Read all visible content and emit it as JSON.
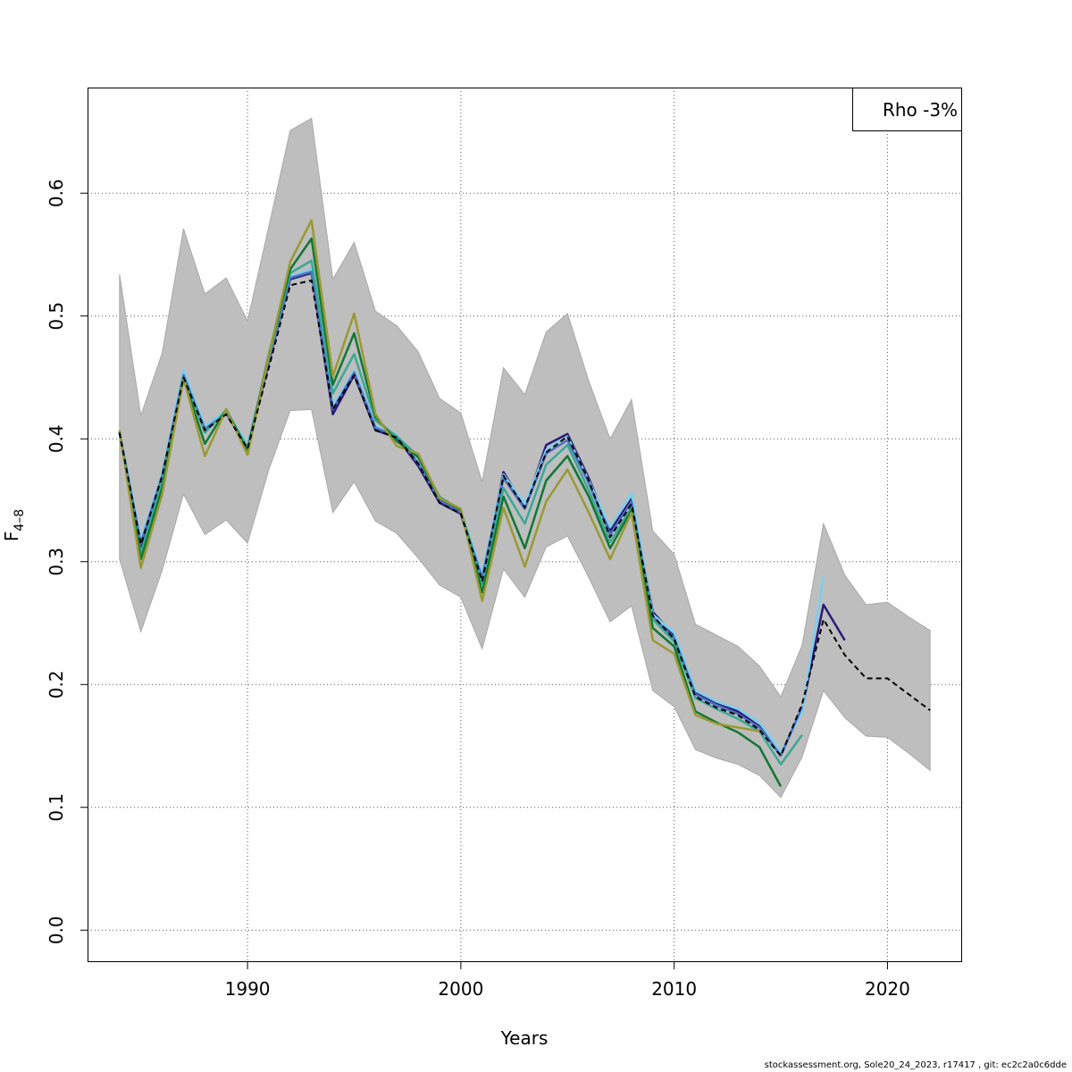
{
  "chart_data": {
    "type": "line",
    "title": "",
    "xlabel": "Years",
    "ylabel_main": "F",
    "ylabel_sub": "4–8",
    "xlim": [
      1982.5,
      2023.5
    ],
    "ylim": [
      -0.026,
      0.686
    ],
    "xticks": [
      1990,
      2000,
      2010,
      2020
    ],
    "yticks": [
      0.0,
      0.1,
      0.2,
      0.3,
      0.4,
      0.5,
      0.6
    ],
    "ytick_labels": [
      "0.0",
      "0.1",
      "0.2",
      "0.3",
      "0.4",
      "0.5",
      "0.6"
    ],
    "grid": true,
    "legend": {
      "position": "top-right",
      "text": "Rho -3%"
    },
    "colors": {
      "band": "#bebebe",
      "band_edge": "#a8a8a8",
      "black": "#000000",
      "navy": "#2a1a7a",
      "lightblue": "#7ad0f0",
      "steelblue": "#4a70c0",
      "teal": "#3aa896",
      "green": "#117733",
      "olive": "#999933"
    },
    "band": {
      "x": [
        1984,
        1985,
        1986,
        1987,
        1988,
        1989,
        1990,
        1991,
        1992,
        1993,
        1994,
        1995,
        1996,
        1997,
        1998,
        1999,
        2000,
        2001,
        2002,
        2003,
        2004,
        2005,
        2006,
        2007,
        2008,
        2009,
        2010,
        2011,
        2012,
        2013,
        2014,
        2015,
        2016,
        2017,
        2018,
        2019,
        2020,
        2021,
        2022
      ],
      "upper": [
        0.534,
        0.419,
        0.47,
        0.571,
        0.518,
        0.531,
        0.496,
        0.573,
        0.651,
        0.661,
        0.53,
        0.56,
        0.504,
        0.492,
        0.471,
        0.433,
        0.421,
        0.365,
        0.458,
        0.436,
        0.487,
        0.502,
        0.447,
        0.4,
        0.432,
        0.325,
        0.306,
        0.249,
        0.24,
        0.231,
        0.215,
        0.19,
        0.232,
        0.331,
        0.289,
        0.265,
        0.267,
        0.255,
        0.244
      ],
      "lower": [
        0.302,
        0.243,
        0.293,
        0.355,
        0.322,
        0.334,
        0.315,
        0.375,
        0.423,
        0.424,
        0.34,
        0.365,
        0.333,
        0.323,
        0.303,
        0.281,
        0.271,
        0.229,
        0.294,
        0.271,
        0.312,
        0.321,
        0.287,
        0.251,
        0.264,
        0.195,
        0.182,
        0.147,
        0.14,
        0.135,
        0.126,
        0.108,
        0.141,
        0.195,
        0.173,
        0.158,
        0.157,
        0.144,
        0.13
      ]
    },
    "series": [
      {
        "color_key": "navy",
        "dashed": false,
        "x": [
          1984,
          1985,
          1986,
          1987,
          1988,
          1989,
          1990,
          1991,
          1992,
          1993,
          1994,
          1995,
          1996,
          1997,
          1998,
          1999,
          2000,
          2001,
          2002,
          2003,
          2004,
          2005,
          2006,
          2007,
          2008,
          2009,
          2010,
          2011,
          2012,
          2013,
          2014,
          2015,
          2016,
          2017,
          2018
        ],
        "y": [
          0.405,
          0.312,
          0.37,
          0.451,
          0.408,
          0.421,
          0.392,
          0.462,
          0.53,
          0.535,
          0.42,
          0.452,
          0.407,
          0.401,
          0.378,
          0.348,
          0.339,
          0.285,
          0.373,
          0.344,
          0.395,
          0.404,
          0.368,
          0.325,
          0.351,
          0.259,
          0.24,
          0.193,
          0.185,
          0.178,
          0.166,
          0.143,
          0.18,
          0.265,
          0.236
        ]
      },
      {
        "color_key": "lightblue",
        "dashed": false,
        "x": [
          1984,
          1985,
          1986,
          1987,
          1988,
          1989,
          1990,
          1991,
          1992,
          1993,
          1994,
          1995,
          1996,
          1997,
          1998,
          1999,
          2000,
          2001,
          2002,
          2003,
          2004,
          2005,
          2006,
          2007,
          2008,
          2009,
          2010,
          2011,
          2012,
          2013,
          2014,
          2015,
          2016,
          2017
        ],
        "y": [
          0.406,
          0.318,
          0.372,
          0.456,
          0.41,
          0.423,
          0.395,
          0.465,
          0.532,
          0.538,
          0.427,
          0.456,
          0.41,
          0.403,
          0.381,
          0.351,
          0.341,
          0.29,
          0.371,
          0.347,
          0.391,
          0.402,
          0.366,
          0.328,
          0.356,
          0.257,
          0.242,
          0.195,
          0.186,
          0.18,
          0.169,
          0.145,
          0.178,
          0.288
        ]
      },
      {
        "color_key": "steelblue",
        "dashed": false,
        "x": [
          1984,
          1985,
          1986,
          1987,
          1988,
          1989,
          1990,
          1991,
          1992,
          1993,
          1994,
          1995,
          1996,
          1997,
          1998,
          1999,
          2000,
          2001,
          2002,
          2003,
          2004,
          2005,
          2006,
          2007,
          2008,
          2009,
          2010,
          2011,
          2012,
          2013,
          2014,
          2015,
          2016
        ],
        "y": [
          0.405,
          0.315,
          0.37,
          0.452,
          0.408,
          0.421,
          0.393,
          0.463,
          0.531,
          0.536,
          0.424,
          0.454,
          0.409,
          0.402,
          0.38,
          0.35,
          0.34,
          0.287,
          0.368,
          0.343,
          0.388,
          0.399,
          0.364,
          0.322,
          0.349,
          0.255,
          0.238,
          0.192,
          0.183,
          0.176,
          0.165,
          0.142,
          0.182
        ]
      },
      {
        "color_key": "teal",
        "dashed": false,
        "x": [
          1984,
          1985,
          1986,
          1987,
          1988,
          1989,
          1990,
          1991,
          1992,
          1993,
          1994,
          1995,
          1996,
          1997,
          1998,
          1999,
          2000,
          2001,
          2002,
          2003,
          2004,
          2005,
          2006,
          2007,
          2008,
          2009,
          2010,
          2011,
          2012,
          2013,
          2014,
          2015,
          2016
        ],
        "y": [
          0.405,
          0.307,
          0.366,
          0.45,
          0.405,
          0.423,
          0.393,
          0.467,
          0.535,
          0.545,
          0.437,
          0.469,
          0.415,
          0.402,
          0.386,
          0.353,
          0.342,
          0.282,
          0.36,
          0.331,
          0.379,
          0.395,
          0.358,
          0.316,
          0.344,
          0.253,
          0.235,
          0.189,
          0.18,
          0.172,
          0.162,
          0.135,
          0.159
        ]
      },
      {
        "color_key": "green",
        "dashed": false,
        "x": [
          1984,
          1985,
          1986,
          1987,
          1988,
          1989,
          1990,
          1991,
          1992,
          1993,
          1994,
          1995,
          1996,
          1997,
          1998,
          1999,
          2000,
          2001,
          2002,
          2003,
          2004,
          2005,
          2006,
          2007,
          2008,
          2009,
          2010,
          2011,
          2012,
          2013,
          2014,
          2015
        ],
        "y": [
          0.406,
          0.302,
          0.36,
          0.449,
          0.396,
          0.424,
          0.39,
          0.469,
          0.538,
          0.563,
          0.444,
          0.486,
          0.418,
          0.398,
          0.385,
          0.352,
          0.342,
          0.275,
          0.353,
          0.311,
          0.366,
          0.386,
          0.353,
          0.311,
          0.342,
          0.246,
          0.231,
          0.178,
          0.169,
          0.161,
          0.149,
          0.117
        ]
      },
      {
        "color_key": "olive",
        "dashed": false,
        "x": [
          1984,
          1985,
          1986,
          1987,
          1988,
          1989,
          1990,
          1991,
          1992,
          1993,
          1994,
          1995,
          1996,
          1997,
          1998,
          1999,
          2000,
          2001,
          2002,
          2003,
          2004,
          2005,
          2006,
          2007,
          2008,
          2009,
          2010,
          2011,
          2012,
          2013,
          2014
        ],
        "y": [
          0.407,
          0.295,
          0.355,
          0.449,
          0.386,
          0.424,
          0.387,
          0.468,
          0.544,
          0.578,
          0.451,
          0.502,
          0.42,
          0.394,
          0.388,
          0.352,
          0.343,
          0.268,
          0.344,
          0.296,
          0.349,
          0.375,
          0.34,
          0.302,
          0.34,
          0.236,
          0.225,
          0.175,
          0.168,
          0.165,
          0.162
        ]
      },
      {
        "color_key": "black",
        "dashed": true,
        "x": [
          1984,
          1985,
          1986,
          1987,
          1988,
          1989,
          1990,
          1991,
          1992,
          1993,
          1994,
          1995,
          1996,
          1997,
          1998,
          1999,
          2000,
          2001,
          2002,
          2003,
          2004,
          2005,
          2006,
          2007,
          2008,
          2009,
          2010,
          2011,
          2012,
          2013,
          2014,
          2015,
          2016,
          2017,
          2018,
          2019,
          2020,
          2021,
          2022
        ],
        "y": [
          0.405,
          0.314,
          0.37,
          0.45,
          0.407,
          0.42,
          0.392,
          0.458,
          0.525,
          0.529,
          0.424,
          0.452,
          0.407,
          0.401,
          0.38,
          0.348,
          0.339,
          0.284,
          0.37,
          0.344,
          0.389,
          0.402,
          0.366,
          0.32,
          0.347,
          0.256,
          0.237,
          0.19,
          0.181,
          0.175,
          0.163,
          0.142,
          0.184,
          0.253,
          0.224,
          0.205,
          0.205,
          0.192,
          0.179
        ]
      }
    ]
  },
  "footer": "stockassessment.org, Sole20_24_2023, r17417 , git: ec2c2a0c6dde"
}
